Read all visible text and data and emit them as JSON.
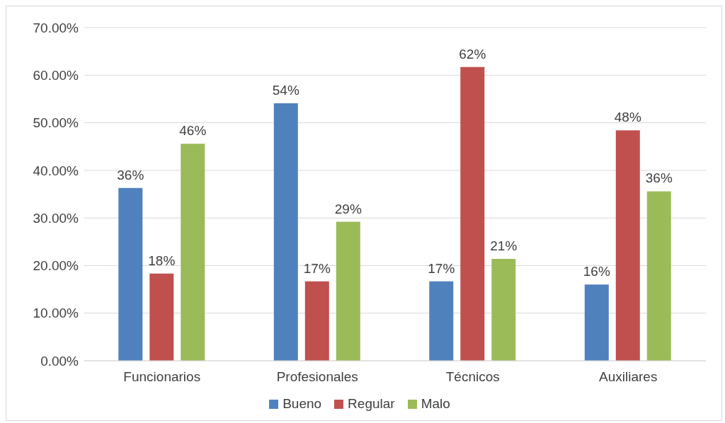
{
  "chart_data": {
    "type": "bar",
    "categories": [
      "Funcionarios",
      "Profesionales",
      "Técnicos",
      "Auxiliares"
    ],
    "series": [
      {
        "name": "Bueno",
        "color": "#4f81bd",
        "values": [
          36.3,
          54.1,
          16.7,
          16.0
        ],
        "value_labels": [
          "36%",
          "54%",
          "17%",
          "16%"
        ]
      },
      {
        "name": "Regular",
        "color": "#c0504d",
        "values": [
          18.3,
          16.7,
          61.7,
          48.4
        ],
        "value_labels": [
          "18%",
          "17%",
          "62%",
          "48%"
        ]
      },
      {
        "name": "Malo",
        "color": "#9bbb59",
        "values": [
          45.6,
          29.2,
          21.4,
          35.6
        ],
        "value_labels": [
          "46%",
          "29%",
          "21%",
          "36%"
        ]
      }
    ],
    "ylim": [
      0,
      70
    ],
    "yticks": [
      {
        "value": 0,
        "label": "0.00%"
      },
      {
        "value": 10,
        "label": "10.00%"
      },
      {
        "value": 20,
        "label": "20.00%"
      },
      {
        "value": 30,
        "label": "30.00%"
      },
      {
        "value": 40,
        "label": "40.00%"
      },
      {
        "value": 50,
        "label": "50.00%"
      },
      {
        "value": 60,
        "label": "60.00%"
      },
      {
        "value": 70,
        "label": "70.00%"
      }
    ],
    "grid": "y",
    "legend": "bottom"
  }
}
